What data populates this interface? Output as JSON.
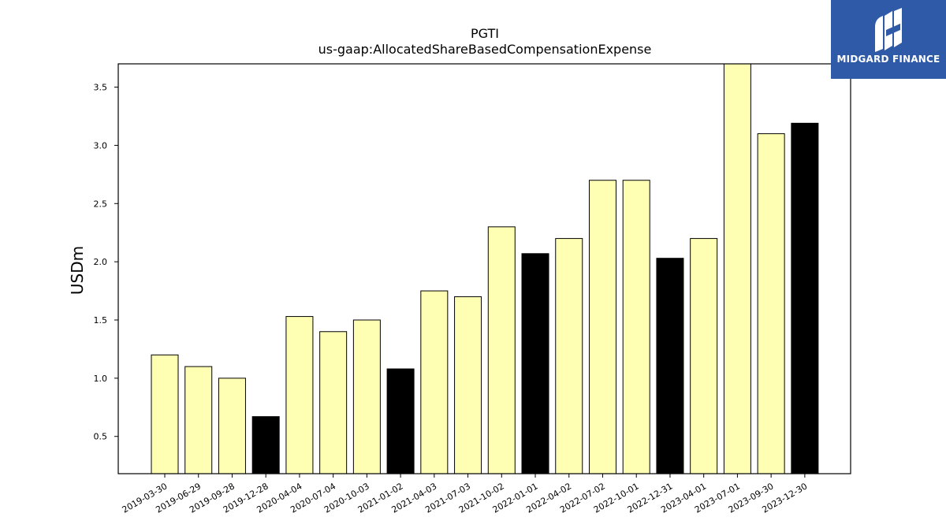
{
  "chart_data": {
    "type": "bar",
    "title": "PGTI",
    "subtitle": "us-gaap:AllocatedShareBasedCompensationExpense",
    "xlabel": "",
    "ylabel": "USDm",
    "ylim": [
      0.18,
      3.7
    ],
    "yticks": [
      0.5,
      1.0,
      1.5,
      2.0,
      2.5,
      3.0,
      3.5
    ],
    "ytick_labels": [
      "0.5",
      "1.0",
      "1.5",
      "2.0",
      "2.5",
      "3.0",
      "3.5"
    ],
    "grid": false,
    "categories": [
      "2019-03-30",
      "2019-06-29",
      "2019-09-28",
      "2019-12-28",
      "2020-04-04",
      "2020-07-04",
      "2020-10-03",
      "2021-01-02",
      "2021-04-03",
      "2021-07-03",
      "2021-10-02",
      "2022-01-01",
      "2022-04-02",
      "2022-07-02",
      "2022-10-01",
      "2022-12-31",
      "2023-04-01",
      "2023-07-01",
      "2023-09-30",
      "2023-12-30"
    ],
    "values": [
      1.2,
      1.1,
      1.0,
      0.67,
      1.53,
      1.4,
      1.5,
      1.08,
      1.75,
      1.7,
      2.3,
      2.07,
      2.2,
      2.7,
      2.7,
      2.03,
      2.2,
      3.7,
      3.1,
      3.19
    ],
    "bar_colors": [
      "#ffffb3",
      "#ffffb3",
      "#ffffb3",
      "#000000",
      "#ffffb3",
      "#ffffb3",
      "#ffffb3",
      "#000000",
      "#ffffb3",
      "#ffffb3",
      "#ffffb3",
      "#000000",
      "#ffffb3",
      "#ffffb3",
      "#ffffb3",
      "#000000",
      "#ffffb3",
      "#ffffb3",
      "#ffffb3",
      "#000000"
    ],
    "edge_color": "#000000"
  },
  "logo": {
    "text": "MIDGARD FINANCE",
    "background": "#2f5aa8",
    "icon": "midgard-monogram-icon"
  }
}
